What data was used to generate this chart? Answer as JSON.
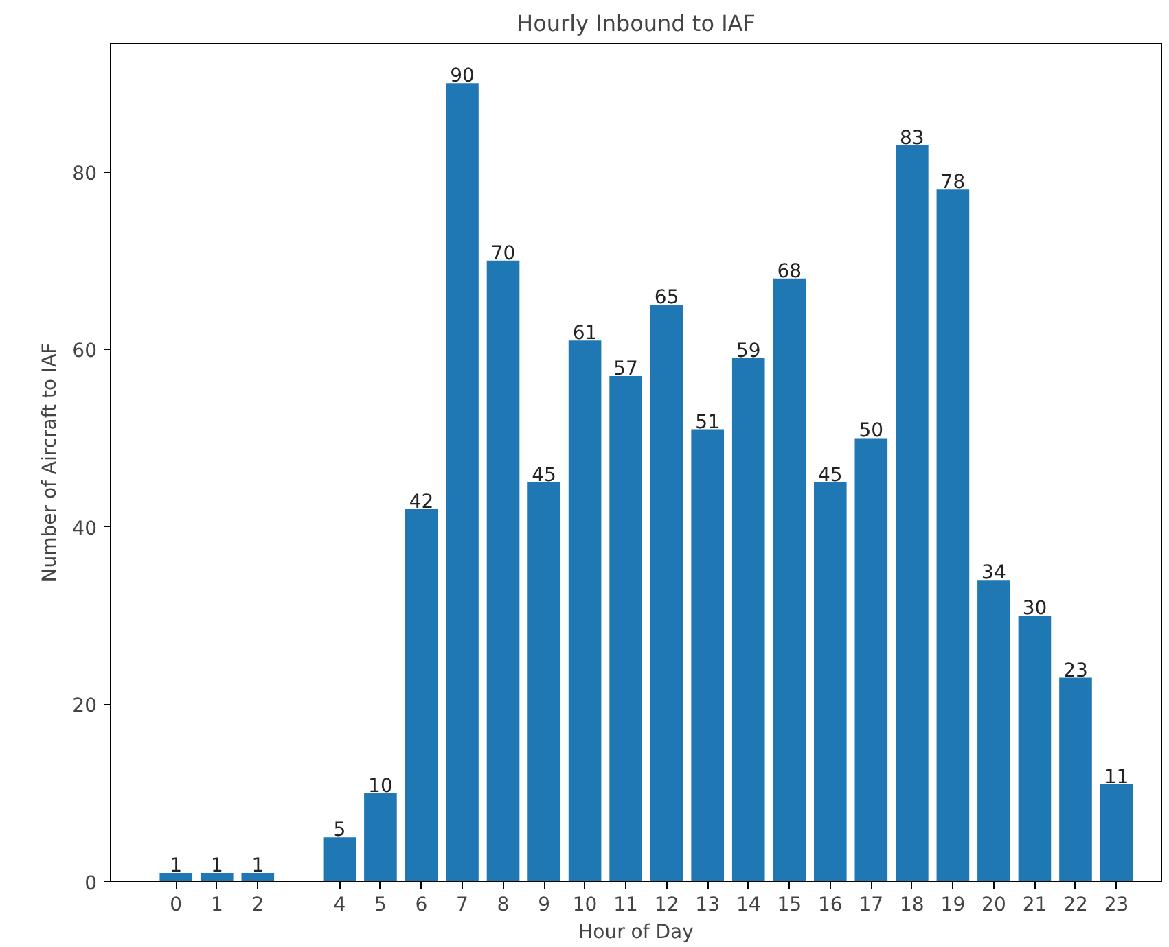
{
  "chart_data": {
    "type": "bar",
    "title": "Hourly Inbound to IAF",
    "xlabel": "Hour of Day",
    "ylabel": "Number of Aircraft to IAF",
    "x": [
      0,
      1,
      2,
      4,
      5,
      6,
      7,
      8,
      9,
      10,
      11,
      12,
      13,
      14,
      15,
      16,
      17,
      18,
      19,
      20,
      21,
      22,
      23
    ],
    "values": [
      1,
      1,
      1,
      5,
      10,
      42,
      90,
      70,
      45,
      61,
      57,
      65,
      51,
      59,
      68,
      45,
      50,
      83,
      78,
      34,
      30,
      23,
      11
    ],
    "color": "#1f77b4",
    "data_labels": true,
    "xlim": [
      -1.6,
      24.1
    ],
    "xticks": [
      0,
      1,
      2,
      4,
      5,
      6,
      7,
      8,
      9,
      10,
      11,
      12,
      13,
      14,
      15,
      16,
      17,
      18,
      19,
      20,
      21,
      22,
      23
    ],
    "ylim": [
      0,
      94.5
    ],
    "yticks": [
      0,
      20,
      40,
      60,
      80
    ],
    "grid": false
  }
}
